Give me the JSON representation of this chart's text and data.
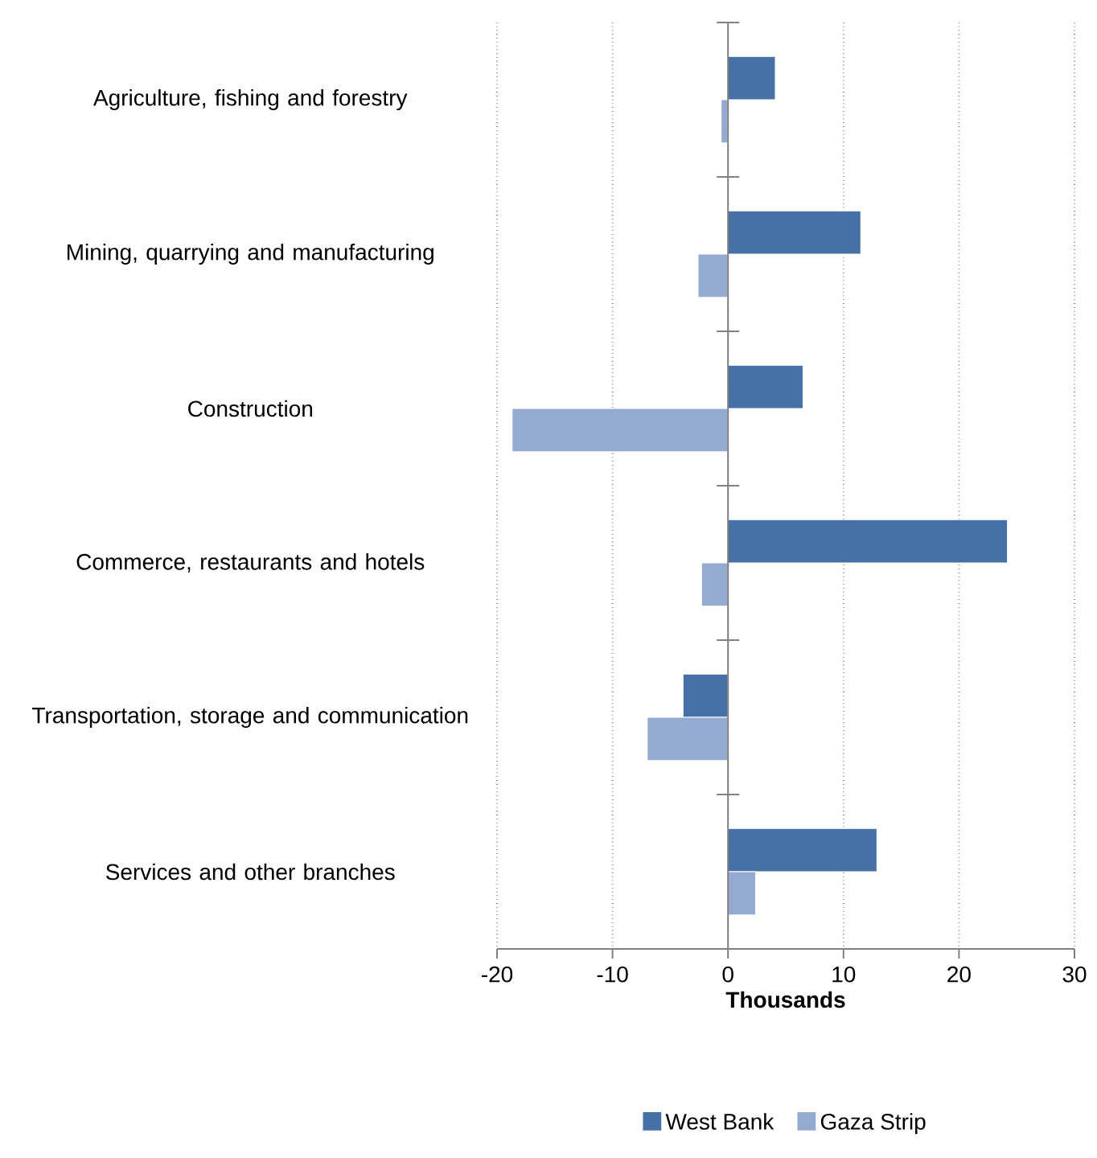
{
  "chart_data": {
    "type": "bar",
    "orientation": "horizontal",
    "xlabel": "Thousands",
    "categories": [
      "Agriculture, fishing and forestry",
      "Mining, quarrying and manufacturing",
      "Construction",
      "Commerce, restaurants and hotels",
      "Transportation, storage and communication",
      "Services and other branches"
    ],
    "series": [
      {
        "name": "West Bank",
        "color": "#4571a6",
        "values": [
          4.1,
          11.5,
          6.5,
          24.2,
          -3.9,
          12.9
        ]
      },
      {
        "name": "Gaza Strip",
        "color": "#95aad0",
        "values": [
          -0.6,
          -2.6,
          -18.7,
          -2.3,
          -7.0,
          2.4
        ]
      }
    ],
    "xlim": [
      -20,
      30
    ],
    "xticks": [
      -20,
      -10,
      0,
      10,
      20,
      30
    ],
    "grid": "x",
    "legend": "bottom"
  }
}
